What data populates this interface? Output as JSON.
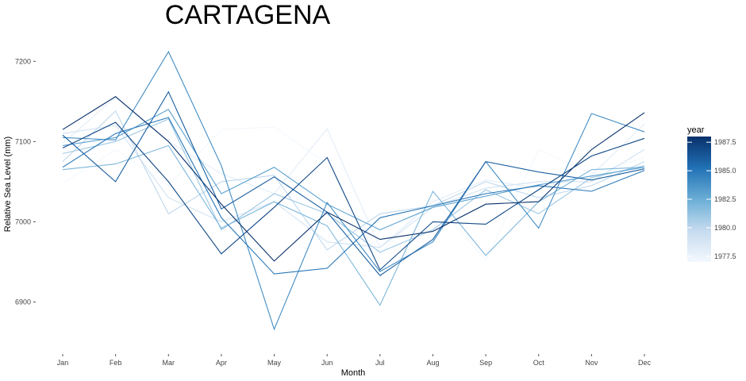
{
  "chart_data": {
    "type": "line",
    "title": "CARTAGENA",
    "xlabel": "Month",
    "ylabel": "Relative Sea Level (mm)",
    "categories": [
      "Jan",
      "Feb",
      "Mar",
      "Apr",
      "May",
      "Jun",
      "Jul",
      "Aug",
      "Sep",
      "Oct",
      "Nov",
      "Dec"
    ],
    "yticks": [
      6900,
      7000,
      7100,
      7200
    ],
    "ylim": [
      6850,
      7225
    ],
    "grid": false,
    "legend": {
      "title": "year",
      "type": "colorbar",
      "position": "right",
      "range": [
        1977,
        1988
      ],
      "ticks": [
        "1977.5",
        "1980.0",
        "1982.5",
        "1985.0",
        "1987.5"
      ],
      "low_color": "#f3f8fd",
      "high_color": "#08306b"
    },
    "series": [
      {
        "year": 1977,
        "values": [
          7048,
          7090,
          7045,
          7115,
          7118,
          7072,
          6960,
          7028,
          6952,
          7090,
          7060,
          7080
        ]
      },
      {
        "year": 1978,
        "values": [
          7098,
          7155,
          7100,
          7060,
          7035,
          7116,
          6968,
          7025,
          7052,
          7042,
          7058,
          7122
        ]
      },
      {
        "year": 1979,
        "values": [
          7110,
          7120,
          7030,
          7000,
          7025,
          6975,
          6968,
          7018,
          7042,
          7050,
          7050,
          7090
        ]
      },
      {
        "year": 1980,
        "values": [
          7075,
          7138,
          7010,
          7050,
          7058,
          6965,
          7010,
          7020,
          7050,
          7030,
          7045,
          7075
        ]
      },
      {
        "year": 1981,
        "values": [
          7085,
          7100,
          7128,
          6990,
          7035,
          7010,
          6962,
          6990,
          7040,
          7010,
          7055,
          7070
        ]
      },
      {
        "year": 1982,
        "values": [
          7065,
          7072,
          7095,
          6992,
          7025,
          6995,
          6896,
          7038,
          6958,
          7025,
          7065,
          7068
        ]
      },
      {
        "year": 1983,
        "values": [
          7095,
          7105,
          7140,
          7035,
          7068,
          7022,
          6990,
          7018,
          7032,
          7046,
          7057,
          7068
        ]
      },
      {
        "year": 1984,
        "values": [
          7105,
          7102,
          7212,
          7070,
          6866,
          7024,
          6938,
          6975,
          7075,
          6992,
          7135,
          7112
        ]
      },
      {
        "year": 1985,
        "values": [
          7068,
          7110,
          7130,
          7005,
          6935,
          6942,
          7005,
          7020,
          7035,
          7045,
          7038,
          7064
        ]
      },
      {
        "year": 1986,
        "values": [
          7108,
          7050,
          7162,
          7016,
          7056,
          7012,
          6933,
          6978,
          7075,
          7062,
          7052,
          7066
        ]
      },
      {
        "year": 1987,
        "values": [
          7092,
          7124,
          7050,
          6960,
          7018,
          7080,
          6940,
          7000,
          6997,
          7040,
          7082,
          7104
        ]
      },
      {
        "year": 1988,
        "values": [
          7115,
          7156,
          7100,
          7022,
          6951,
          7012,
          6978,
          6988,
          7022,
          7025,
          7090,
          7136
        ]
      }
    ]
  }
}
